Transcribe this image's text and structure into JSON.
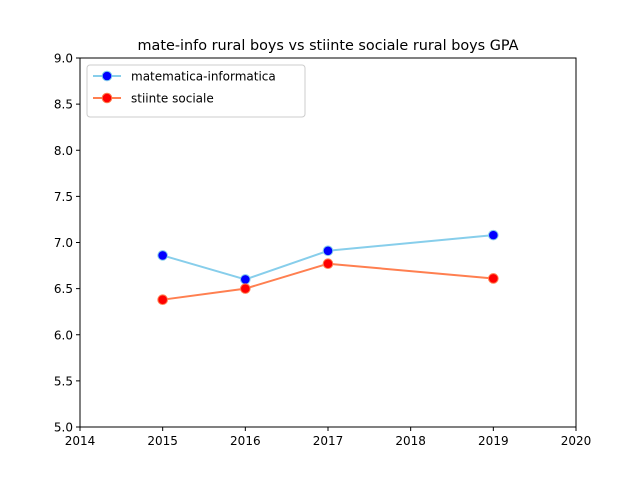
{
  "chart_data": {
    "type": "line",
    "title": "mate-info rural boys vs stiinte sociale rural boys GPA",
    "xlabel": "",
    "ylabel": "",
    "xlim": [
      2014,
      2020
    ],
    "ylim": [
      5.0,
      9.0
    ],
    "x_ticks": [
      "2014",
      "2015",
      "2016",
      "2017",
      "2018",
      "2019",
      "2020"
    ],
    "y_ticks": [
      "5.0",
      "5.5",
      "6.0",
      "6.5",
      "7.0",
      "7.5",
      "8.0",
      "8.5",
      "9.0"
    ],
    "grid": false,
    "legend_position": "upper-left",
    "series": [
      {
        "name": "matematica-informatica",
        "x": [
          2015,
          2016,
          2017,
          2019
        ],
        "values": [
          6.86,
          6.6,
          6.91,
          7.08
        ],
        "line_color": "#87ceeb",
        "marker_color": "#0000ff"
      },
      {
        "name": "stiinte sociale",
        "x": [
          2015,
          2016,
          2017,
          2019
        ],
        "values": [
          6.38,
          6.5,
          6.77,
          6.61
        ],
        "line_color": "#ff7f50",
        "marker_color": "#ff0000"
      }
    ]
  }
}
